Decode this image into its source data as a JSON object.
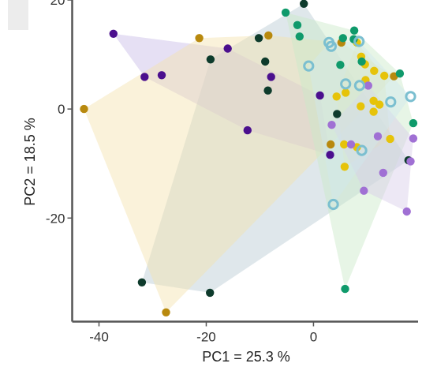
{
  "chart_data": {
    "type": "scatter",
    "xlabel": "PC1 = 25.3 %",
    "ylabel": "PC2 = 18.5 %",
    "xlim": [
      -45,
      19.5
    ],
    "ylim": [
      -39,
      20
    ],
    "xticks": [
      {
        "value": -40,
        "label": "-40"
      },
      {
        "value": -20,
        "label": "-20"
      },
      {
        "value": 0,
        "label": "0"
      }
    ],
    "yticks": [
      {
        "value": 20,
        "label": "20"
      },
      {
        "value": 0,
        "label": "0"
      },
      {
        "value": -20,
        "label": "-20"
      }
    ],
    "grid": false,
    "legend": "none",
    "series": [
      {
        "color": "#0e3b2c",
        "marker": "filled",
        "hull_fill": "#b9c9d2",
        "points": [
          [
            -1.8,
            19.3
          ],
          [
            -10.2,
            13.0
          ],
          [
            -19.2,
            9.1
          ],
          [
            -9.0,
            8.7
          ],
          [
            -8.5,
            3.4
          ],
          [
            4.4,
            -0.9
          ],
          [
            17.7,
            -9.4
          ],
          [
            -32.0,
            -31.8
          ],
          [
            -19.3,
            -33.7
          ]
        ]
      },
      {
        "color": "#4b0f8e",
        "marker": "filled",
        "hull_fill": "#c8bbe6",
        "points": [
          [
            -37.3,
            13.8
          ],
          [
            -16.0,
            11.1
          ],
          [
            -28.3,
            6.2
          ],
          [
            -31.5,
            5.9
          ],
          [
            -7.9,
            5.9
          ],
          [
            1.2,
            2.5
          ],
          [
            3.1,
            -8.4
          ],
          [
            -12.3,
            -3.9
          ]
        ]
      },
      {
        "color": "#b8890e",
        "marker": "filled",
        "hull_fill": "#f3e3ad",
        "points": [
          [
            -42.8,
            0.0
          ],
          [
            -21.3,
            13.0
          ],
          [
            -8.4,
            13.5
          ],
          [
            5.2,
            12.2
          ],
          [
            15.0,
            6.0
          ],
          [
            3.2,
            -6.5
          ],
          [
            -27.5,
            -37.3
          ]
        ]
      },
      {
        "color": "#e6c309",
        "marker": "filled",
        "hull_fill": "#f6e7a2",
        "points": [
          [
            8.1,
            12.2
          ],
          [
            8.9,
            9.6
          ],
          [
            9.6,
            8.2
          ],
          [
            11.3,
            7.0
          ],
          [
            13.2,
            6.1
          ],
          [
            9.7,
            5.3
          ],
          [
            4.3,
            2.3
          ],
          [
            6.0,
            3.0
          ],
          [
            8.8,
            0.5
          ],
          [
            11.2,
            1.5
          ],
          [
            12.3,
            0.8
          ],
          [
            11.2,
            -0.5
          ],
          [
            5.7,
            -6.5
          ],
          [
            14.3,
            -5.5
          ],
          [
            5.8,
            -10.6
          ],
          [
            8.1,
            -7.0
          ]
        ]
      },
      {
        "color": "#0f9a6b",
        "marker": "filled",
        "hull_fill": "#c9e8c8",
        "points": [
          [
            -5.2,
            17.7
          ],
          [
            -3.0,
            15.4
          ],
          [
            -2.6,
            13.3
          ],
          [
            5.5,
            13.0
          ],
          [
            7.6,
            14.4
          ],
          [
            7.5,
            12.8
          ],
          [
            5.0,
            8.1
          ],
          [
            9.0,
            8.7
          ],
          [
            16.1,
            6.5
          ],
          [
            18.6,
            -2.6
          ],
          [
            5.9,
            -33.0
          ]
        ]
      },
      {
        "color": "#a070d4",
        "marker": "filled",
        "hull_fill": "#d8cde8",
        "points": [
          [
            10.2,
            4.3
          ],
          [
            3.4,
            -2.9
          ],
          [
            7.0,
            -6.5
          ],
          [
            12.0,
            -5.0
          ],
          [
            13.0,
            -11.7
          ],
          [
            9.4,
            -15.0
          ],
          [
            18.1,
            -9.6
          ],
          [
            18.6,
            -5.4
          ],
          [
            17.4,
            -18.8
          ]
        ]
      },
      {
        "color": "#7bbfd0",
        "marker": "ring",
        "hull_fill": "#d0e8ee",
        "points": [
          [
            2.9,
            12.2
          ],
          [
            3.3,
            11.5
          ],
          [
            8.5,
            12.4
          ],
          [
            -0.9,
            7.9
          ],
          [
            6.0,
            4.6
          ],
          [
            8.6,
            4.3
          ],
          [
            14.4,
            1.3
          ],
          [
            18.1,
            2.3
          ],
          [
            9.0,
            -7.6
          ],
          [
            3.7,
            -17.5
          ]
        ]
      }
    ]
  }
}
